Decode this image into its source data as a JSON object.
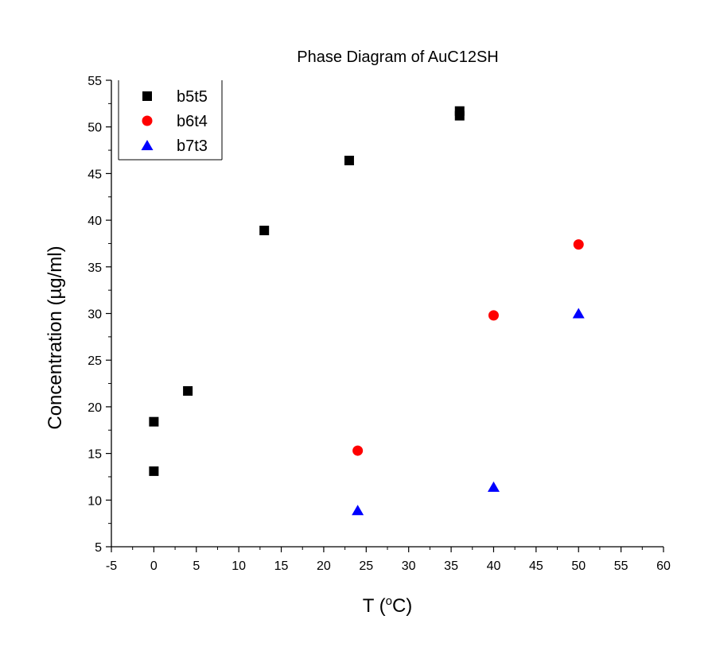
{
  "chart_data": {
    "type": "scatter",
    "title": "Phase Diagram of AuC12SH",
    "xlabel": {
      "prefix": "T (",
      "sup": "o",
      "suffix": "C)"
    },
    "ylabel": "Concentration (µg/ml)",
    "xlim": [
      -5,
      60
    ],
    "ylim": [
      5,
      55
    ],
    "x_ticks": [
      -5,
      0,
      5,
      10,
      15,
      20,
      25,
      30,
      35,
      40,
      45,
      50,
      55,
      60
    ],
    "y_ticks": [
      5,
      10,
      15,
      20,
      25,
      30,
      35,
      40,
      45,
      50,
      55
    ],
    "grid": false,
    "legend_position": "top-left",
    "series": [
      {
        "name": "b5t5",
        "marker": "square",
        "color": "#000000",
        "points": [
          [
            0,
            13.1
          ],
          [
            0,
            18.4
          ],
          [
            4,
            21.7
          ],
          [
            13,
            38.9
          ],
          [
            23,
            46.4
          ],
          [
            36,
            51.2
          ],
          [
            36,
            51.7
          ]
        ]
      },
      {
        "name": "b6t4",
        "marker": "circle",
        "color": "#ff0000",
        "points": [
          [
            24,
            15.3
          ],
          [
            40,
            29.8
          ],
          [
            50,
            37.4
          ]
        ]
      },
      {
        "name": "b7t3",
        "marker": "triangle",
        "color": "#0000ff",
        "points": [
          [
            24,
            8.9
          ],
          [
            40,
            11.4
          ],
          [
            50,
            30.0
          ]
        ]
      }
    ]
  }
}
